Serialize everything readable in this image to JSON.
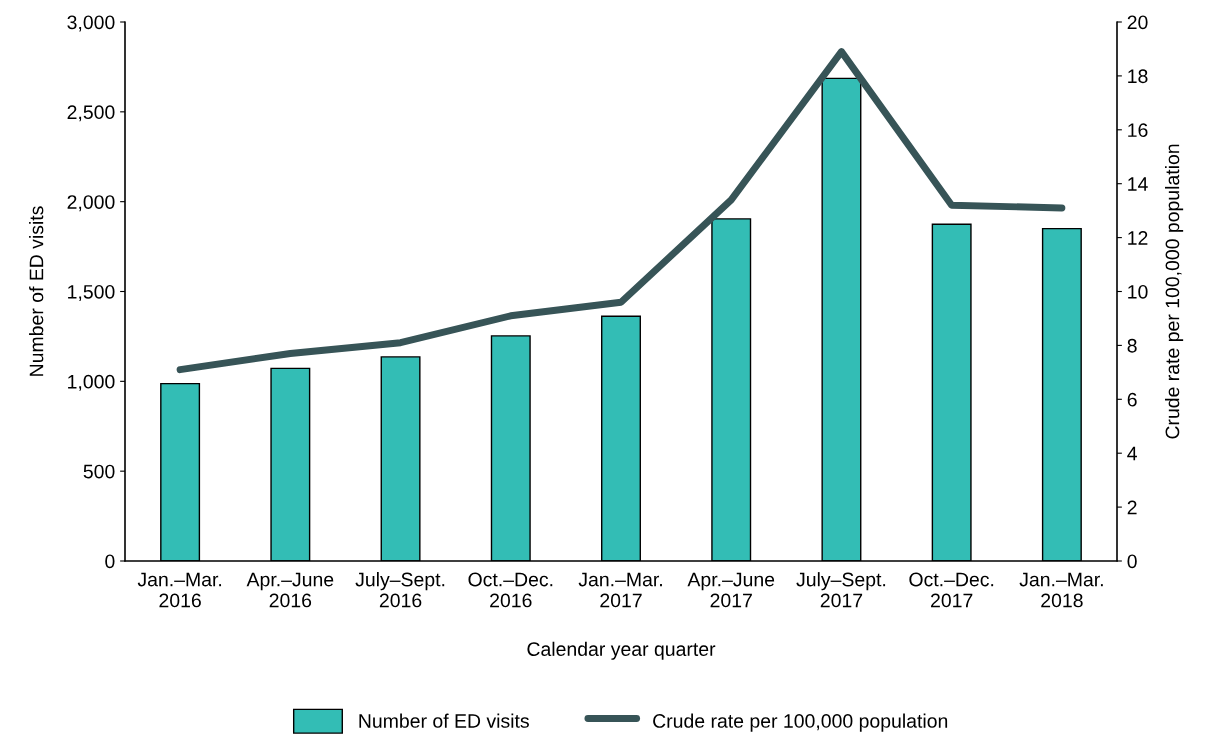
{
  "chart_data": {
    "type": "bar",
    "xlabel": "Calendar year quarter",
    "ylabel": "Number of ED visits",
    "y2label": "Crude rate per 100,000 population",
    "categories": [
      "Jan.–Mar.\n2016",
      "Apr.–June\n2016",
      "July–Sept.\n2016",
      "Oct.–Dec.\n2016",
      "Jan.–Mar.\n2017",
      "Apr.–June\n2017",
      "July–Sept.\n2017",
      "Oct.–Dec.\n2017",
      "Jan.–Mar.\n2018"
    ],
    "series": [
      {
        "name": "Number of ED visits",
        "color": "#33bdb5",
        "values": [
          987,
          1072,
          1136,
          1253,
          1362,
          1904,
          2686,
          1874,
          1850
        ]
      },
      {
        "name": "Crude rate per 100,000 population",
        "type": "line",
        "axis": "y2",
        "color": "#375457",
        "values": [
          7.1,
          7.7,
          8.1,
          9.1,
          9.6,
          13.4,
          18.9,
          13.2,
          13.1
        ]
      }
    ],
    "ylim": [
      0,
      3000
    ],
    "yticks": [
      0,
      {
        "value": 500,
        "label": "500"
      },
      {
        "value": 1000,
        "label": "1,000"
      },
      {
        "value": 1500,
        "label": "1,500"
      },
      {
        "value": 2000,
        "label": "2,000"
      },
      {
        "value": 2500,
        "label": "2,500"
      },
      {
        "value": 3000,
        "label": "3,000"
      }
    ],
    "y2lim": [
      0,
      20
    ],
    "y2ticks": [
      0,
      2,
      4,
      6,
      8,
      10,
      12,
      14,
      16,
      18,
      20
    ],
    "grid": false,
    "legend": "bottom",
    "marker": "none",
    "line_style": "solid"
  }
}
